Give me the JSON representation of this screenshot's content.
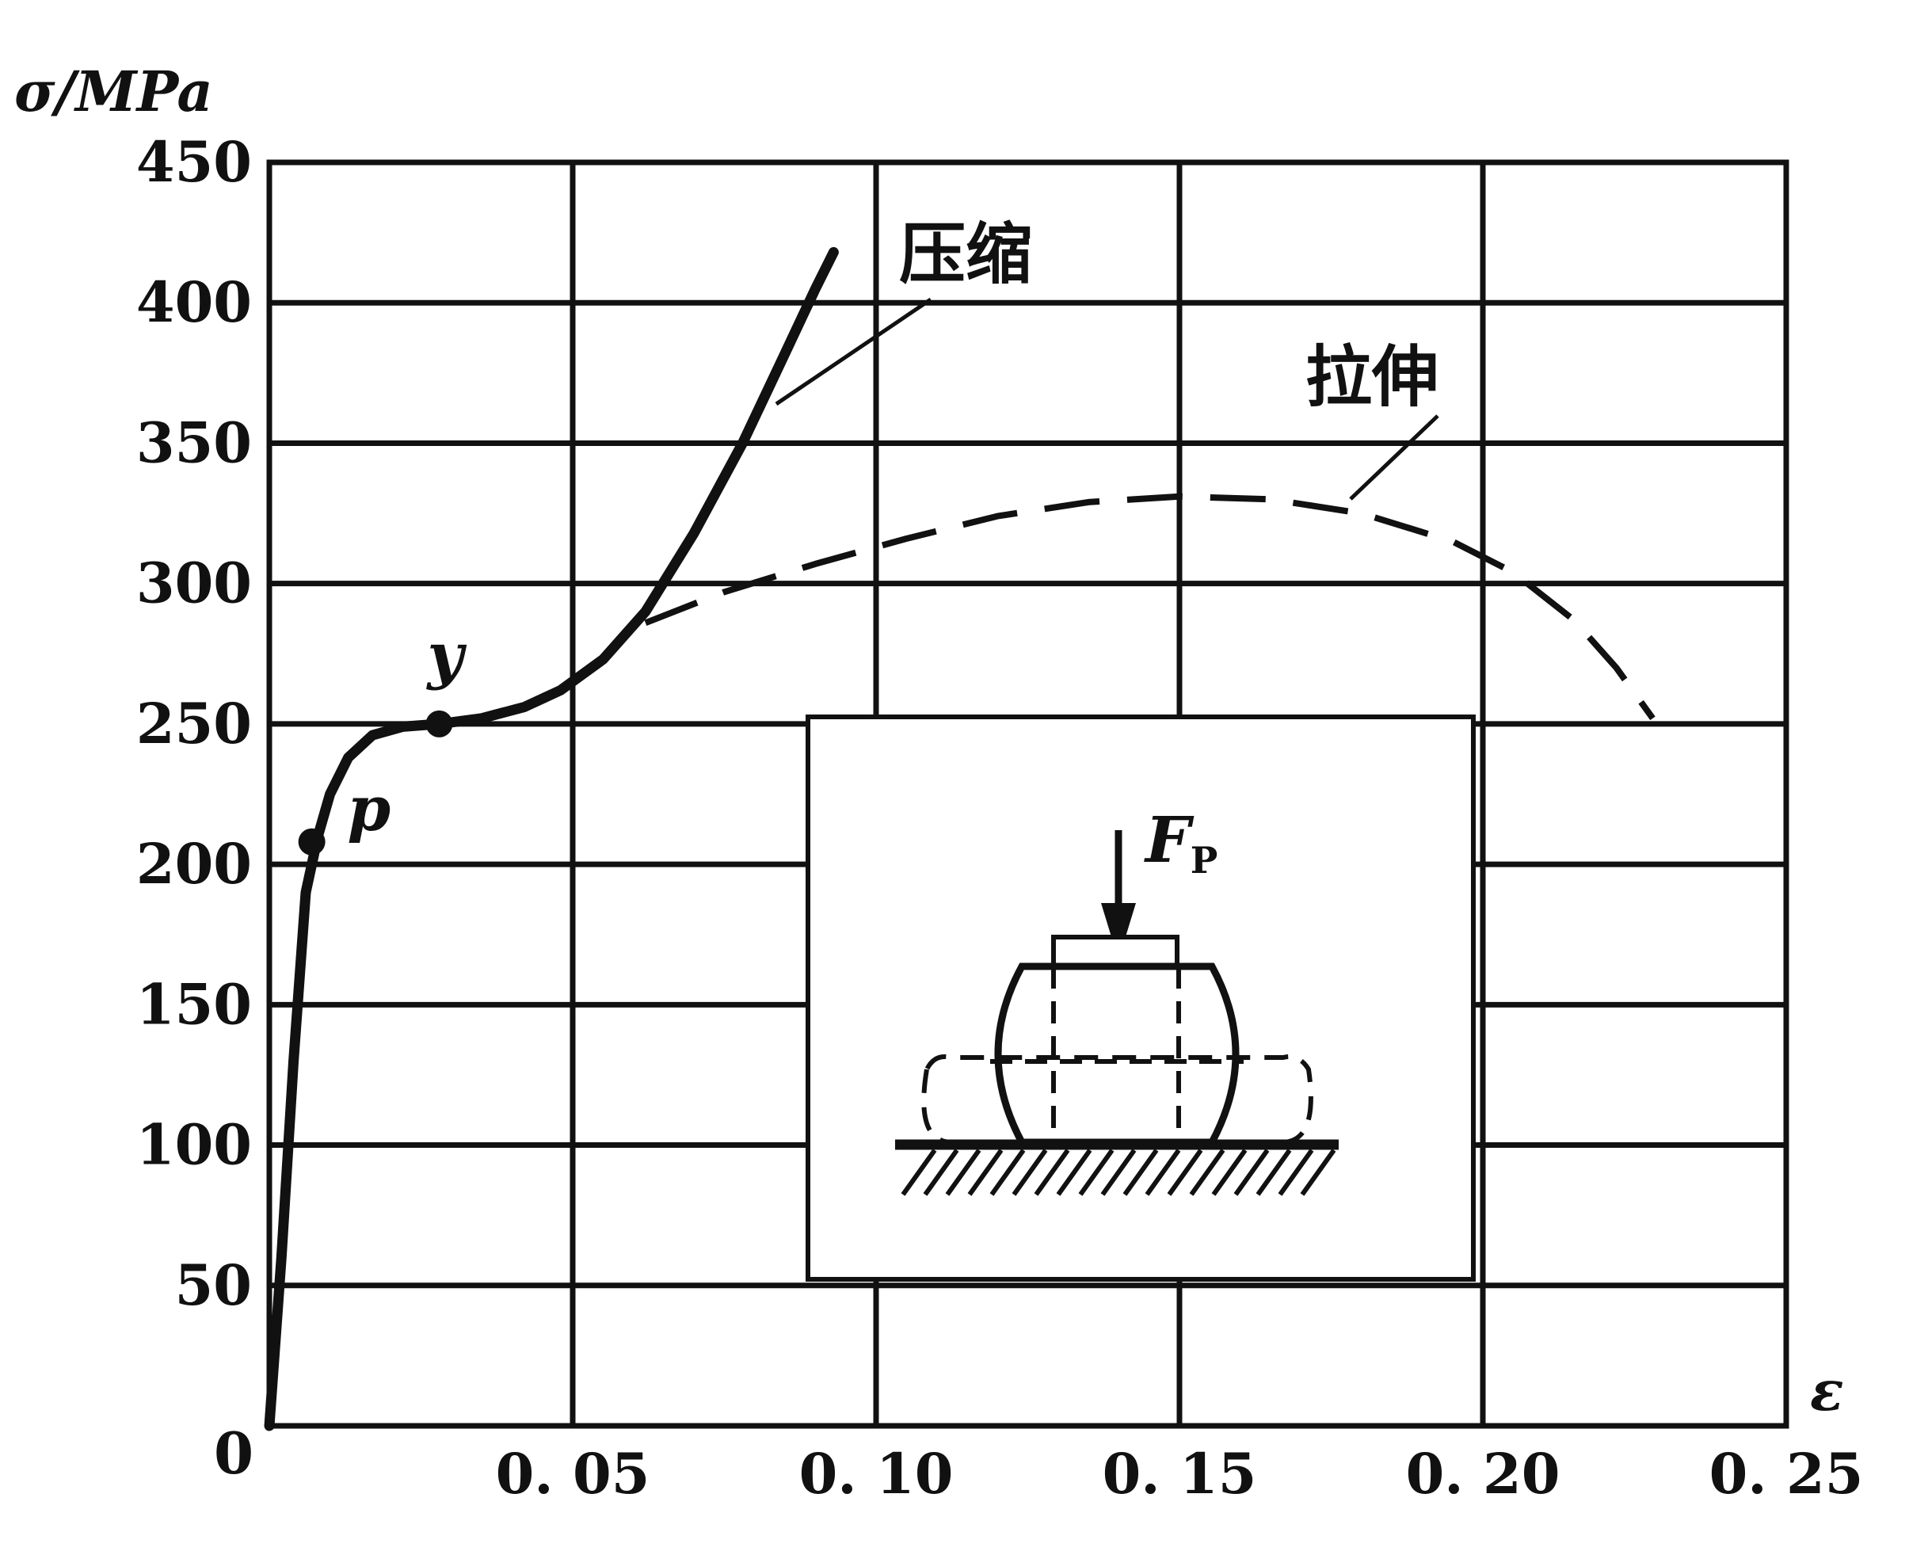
{
  "chart_data": {
    "type": "line",
    "title": "",
    "ylabel": "σ/MPa",
    "xlabel": "ε",
    "xlim": [
      0,
      0.25
    ],
    "ylim": [
      0,
      450
    ],
    "x_ticks": [
      0.05,
      0.1,
      0.15,
      0.2,
      0.25
    ],
    "x_tick_labels": [
      "0. 05",
      "0. 10",
      "0. 15",
      "0. 20",
      "0. 25"
    ],
    "y_ticks": [
      50,
      100,
      150,
      200,
      250,
      300,
      350,
      400,
      450
    ],
    "y_tick_labels": [
      "50",
      "100",
      "150",
      "200",
      "250",
      "300",
      "350",
      "400",
      "450"
    ],
    "origin_label": "0",
    "grid": true,
    "series": [
      {
        "name": "压缩",
        "style": "solid",
        "x": [
          0.0,
          0.002,
          0.004,
          0.006,
          0.008,
          0.01,
          0.013,
          0.017,
          0.022,
          0.028,
          0.035,
          0.042,
          0.048,
          0.055,
          0.062,
          0.07,
          0.078,
          0.085,
          0.09,
          0.093
        ],
        "y": [
          0,
          60,
          130,
          190,
          210,
          225,
          238,
          246,
          249,
          250,
          252,
          256,
          262,
          273,
          290,
          318,
          350,
          382,
          405,
          418
        ]
      },
      {
        "name": "拉伸",
        "style": "dashed",
        "x": [
          0.062,
          0.075,
          0.09,
          0.105,
          0.12,
          0.135,
          0.15,
          0.165,
          0.18,
          0.195,
          0.205,
          0.215,
          0.222,
          0.228
        ],
        "y": [
          286,
          297,
          307,
          316,
          324,
          329,
          331,
          330,
          325,
          315,
          304,
          287,
          270,
          252
        ]
      }
    ],
    "points": [
      {
        "label": "p",
        "x": 0.007,
        "y": 208
      },
      {
        "label": "y",
        "x": 0.028,
        "y": 250
      }
    ],
    "inset": {
      "force_label": "F",
      "force_subscript": "P"
    }
  }
}
